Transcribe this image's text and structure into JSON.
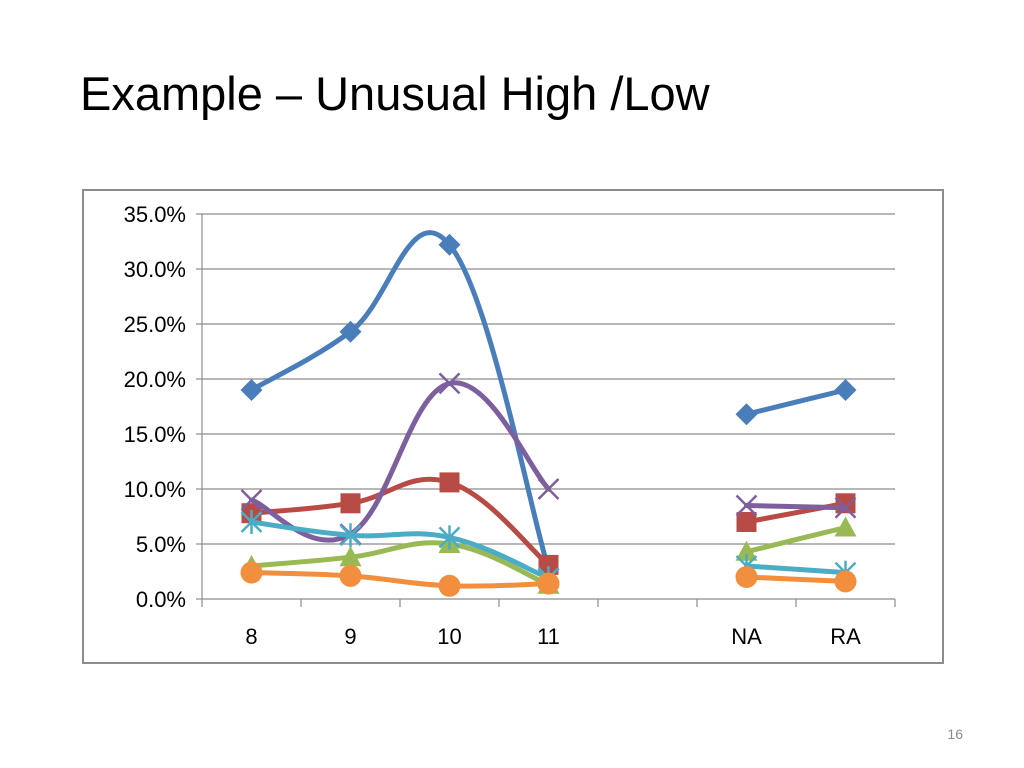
{
  "slide": {
    "title": "Example – Unusual High /Low",
    "page_number": "16"
  },
  "chart_data": {
    "type": "line",
    "title": "",
    "xlabel": "",
    "ylabel": "",
    "categories": [
      "8",
      "9",
      "10",
      "11",
      "",
      "NA",
      "RA"
    ],
    "ylim": [
      0,
      0.35
    ],
    "yticks": [
      0,
      0.05,
      0.1,
      0.15,
      0.2,
      0.25,
      0.3,
      0.35
    ],
    "ytick_labels": [
      "0.0%",
      "5.0%",
      "10.0%",
      "15.0%",
      "20.0%",
      "25.0%",
      "30.0%",
      "35.0%"
    ],
    "grid": "horizontal",
    "legend": "none",
    "smooth": true,
    "series": [
      {
        "color": "#4a7ebb",
        "marker": "diamond",
        "values": [
          0.19,
          0.243,
          0.322,
          0.027,
          null,
          0.168,
          0.19
        ]
      },
      {
        "color": "#b84b45",
        "marker": "square",
        "values": [
          0.078,
          0.087,
          0.106,
          0.031,
          null,
          0.07,
          0.087
        ]
      },
      {
        "color": "#98b954",
        "marker": "triangle",
        "values": [
          0.03,
          0.038,
          0.05,
          0.013,
          null,
          0.043,
          0.065
        ]
      },
      {
        "color": "#7e5f9e",
        "marker": "x",
        "values": [
          0.09,
          0.059,
          0.196,
          0.1,
          null,
          0.085,
          0.083
        ]
      },
      {
        "color": "#4bacc6",
        "marker": "star",
        "values": [
          0.07,
          0.058,
          0.056,
          0.019,
          null,
          0.03,
          0.024
        ]
      },
      {
        "color": "#f28f3f",
        "marker": "circle",
        "values": [
          0.024,
          0.021,
          0.012,
          0.014,
          null,
          0.02,
          0.016
        ]
      }
    ]
  }
}
